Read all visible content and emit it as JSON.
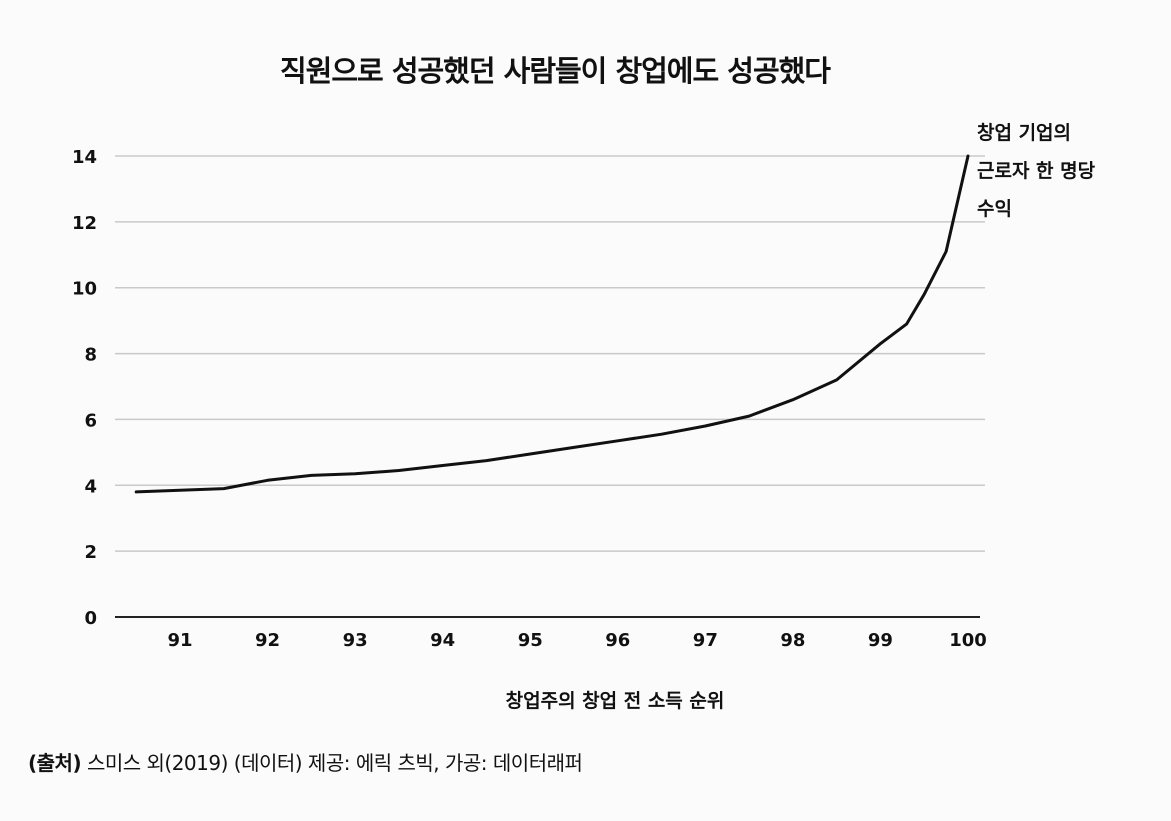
{
  "chart_data": {
    "type": "line",
    "title": "직원으로 성공했던 사람들이 창업에도 성공했다",
    "xlabel": "창업주의 창업 전 소득 순위",
    "ylabel": "",
    "x_ticks": [
      "91",
      "92",
      "93",
      "94",
      "95",
      "96",
      "97",
      "98",
      "99",
      "100"
    ],
    "y_ticks": [
      "0",
      "2",
      "4",
      "6",
      "8",
      "10",
      "12",
      "14"
    ],
    "xlim": [
      90.4,
      100
    ],
    "ylim": [
      0,
      14
    ],
    "grid": true,
    "series": [
      {
        "name": "창업 기업의 근로자 한 명당 수익",
        "label_lines": [
          "창업 기업의",
          "근로자 한 명당",
          "수익"
        ],
        "x": [
          90.5,
          91.0,
          91.5,
          92.0,
          92.5,
          93.0,
          93.5,
          94.0,
          94.5,
          95.0,
          95.5,
          96.0,
          96.5,
          97.0,
          97.5,
          98.0,
          98.5,
          99.0,
          99.3,
          99.5,
          99.75,
          100.0
        ],
        "y": [
          3.8,
          3.85,
          3.9,
          4.15,
          4.3,
          4.35,
          4.45,
          4.6,
          4.75,
          4.95,
          5.15,
          5.35,
          5.55,
          5.8,
          6.1,
          6.6,
          7.2,
          8.3,
          8.9,
          9.8,
          11.1,
          14.0
        ]
      }
    ]
  },
  "footer": {
    "source_label": "(출처)",
    "source_text": " 스미스 외(2019) (데이터) 제공: 에릭 츠빅, 가공: 데이터래퍼"
  }
}
